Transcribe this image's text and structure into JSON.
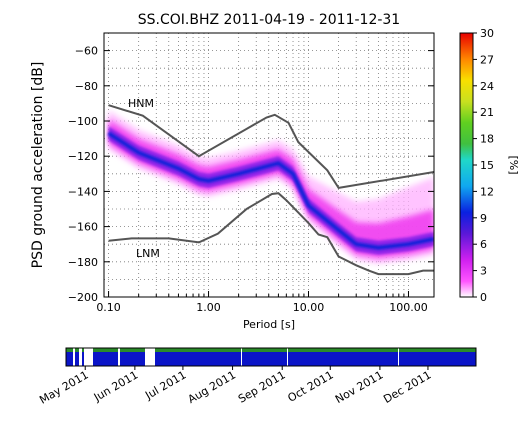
{
  "chart_data": [
    {
      "type": "heatmap",
      "title": "SS.COI.BHZ    2011-04-19 - 2011-12-31",
      "xlabel": "Period [s]",
      "ylabel": "PSD ground acceleration  [dB]",
      "xscale": "log",
      "xlim": [
        0.09,
        180
      ],
      "ylim": [
        -200,
        -50
      ],
      "x_ticks": [
        {
          "value": 0.1,
          "label": "0.10"
        },
        {
          "value": 1,
          "label": "1.00"
        },
        {
          "value": 10,
          "label": "10.00"
        },
        {
          "value": 100,
          "label": "100.00"
        }
      ],
      "y_ticks": [
        {
          "value": -60,
          "label": "−60"
        },
        {
          "value": -80,
          "label": "−80"
        },
        {
          "value": -100,
          "label": "−100"
        },
        {
          "value": -120,
          "label": "−120"
        },
        {
          "value": -140,
          "label": "−140"
        },
        {
          "value": -160,
          "label": "−160"
        },
        {
          "value": -180,
          "label": "−180"
        },
        {
          "value": -200,
          "label": "−200"
        }
      ],
      "grid": true,
      "colorbar": {
        "label": "[%]",
        "range": [
          0,
          30
        ],
        "ticks": [
          "0",
          "3",
          "6",
          "9",
          "12",
          "15",
          "18",
          "21",
          "24",
          "27",
          "30"
        ]
      },
      "reference_curves": [
        {
          "name": "HNM",
          "x": [
            0.1,
            0.22,
            0.8,
            3.8,
            4.6,
            6.3,
            7.9,
            15.4,
            20,
            180
          ],
          "y": [
            -91,
            -97,
            -120,
            -98,
            -96.5,
            -101,
            -112,
            -128,
            -138,
            -129
          ]
        },
        {
          "name": "LNM",
          "x": [
            0.1,
            0.17,
            0.4,
            0.8,
            1.24,
            2.4,
            4.3,
            5.0,
            6.0,
            10,
            12.6,
            15.4,
            20,
            30,
            40,
            50,
            60,
            100,
            140,
            180
          ],
          "y": [
            -168,
            -166.7,
            -166.7,
            -169,
            -164,
            -150,
            -141.5,
            -141,
            -145,
            -158,
            -164.5,
            -166,
            -177,
            -182,
            -185,
            -187,
            -187,
            -187,
            -185,
            -185
          ]
        }
      ],
      "density_ridge": {
        "period": [
          0.1,
          0.2,
          0.5,
          0.8,
          1.0,
          2.0,
          5.0,
          7.0,
          10,
          20,
          30,
          50,
          100,
          180
        ],
        "psd_db": [
          -107,
          -118,
          -127,
          -133,
          -134,
          -130,
          -124,
          -130,
          -148,
          -162,
          -170,
          -172,
          -170,
          -167
        ]
      }
    },
    {
      "type": "heatmap",
      "title": "",
      "description_of_data": "data availability timeline",
      "x_ticks": [
        "May 2011",
        "Jun 2011",
        "Jul 2011",
        "Aug 2011",
        "Sep 2011",
        "Oct 2011",
        "Nov 2011",
        "Dec 2011"
      ],
      "colors": {
        "available": "#0a14c8",
        "recent_top": "#2a8a2a",
        "gap": "#ffffff"
      }
    }
  ]
}
